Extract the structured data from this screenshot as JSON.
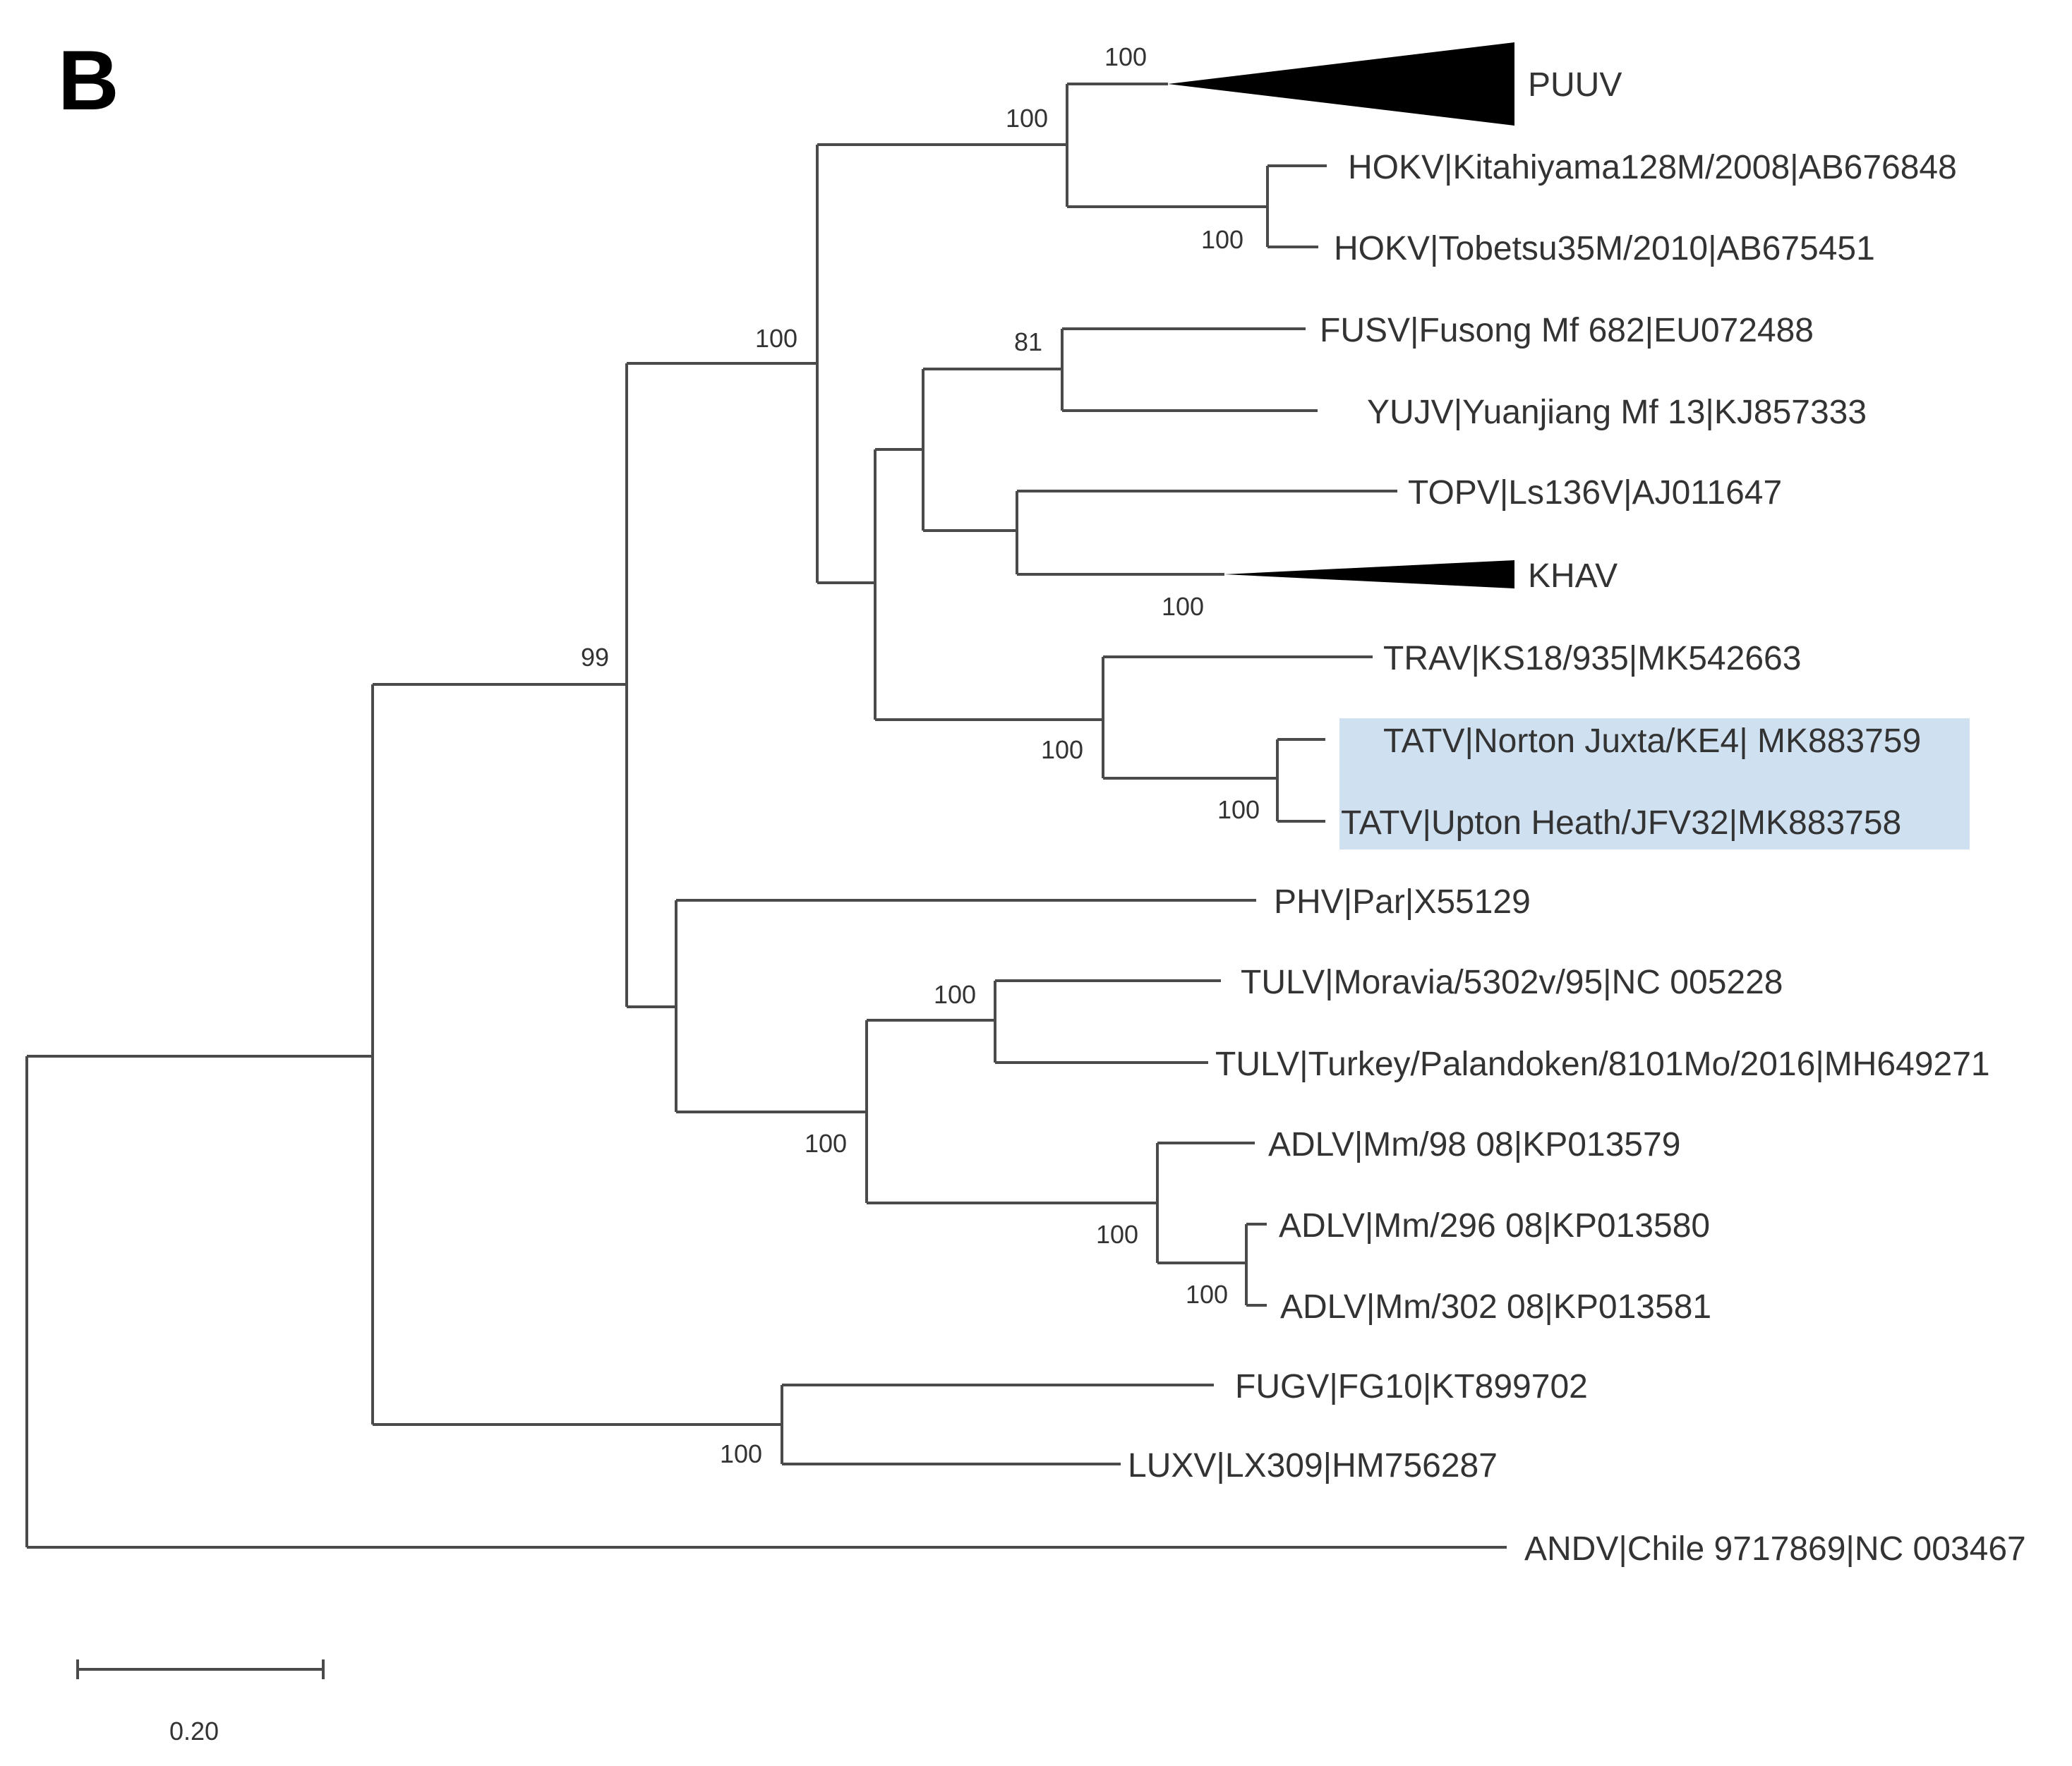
{
  "panel_label": "B",
  "colors": {
    "line": "#4a4a4a",
    "text": "#333333",
    "highlight": "#cfe0f1",
    "clade": "#000000"
  },
  "leaves": {
    "puuv": "PUUV",
    "hokv1": "HOKV|Kitahiyama128M/2008|AB676848",
    "hokv2": "HOKV|Tobetsu35M/2010|AB675451",
    "fusv": "FUSV|Fusong Mf 682|EU072488",
    "yujv": "YUJV|Yuanjiang Mf 13|KJ857333",
    "topv": "TOPV|Ls136V|AJ011647",
    "khav": "KHAV",
    "trav": "TRAV|KS18/935|MK542663",
    "tatv1": "TATV|Norton Juxta/KE4| MK883759",
    "tatv2": "TATV|Upton Heath/JFV32|MK883758",
    "phv": "PHV|Par|X55129",
    "tulv1": "TULV|Moravia/5302v/95|NC 005228",
    "tulv2": "TULV|Turkey/Palandoken/8101Mo/2016|MH649271",
    "adlv1": "ADLV|Mm/98 08|KP013579",
    "adlv2": "ADLV|Mm/296 08|KP013580",
    "adlv3": "ADLV|Mm/302 08|KP013581",
    "fugv": "FUGV|FG10|KT899702",
    "luxv": "LUXV|LX309|HM756287",
    "andv": "ANDV|Chile 9717869|NC 003467"
  },
  "bootstrap": {
    "puuv_clade": "100",
    "puuv_hokv": "100",
    "hokv": "100",
    "puuv_group": "100",
    "fusv_yujv": "81",
    "khav_clade": "100",
    "ingroup_a": "99",
    "trav_tatv": "100",
    "tatv": "100",
    "tulv": "100",
    "tulv_adlv": "100",
    "adlv_all": "100",
    "adlv_pair": "100",
    "fugv_luxv": "100"
  },
  "scale_bar": {
    "label": "0.20",
    "value": 0.2
  }
}
